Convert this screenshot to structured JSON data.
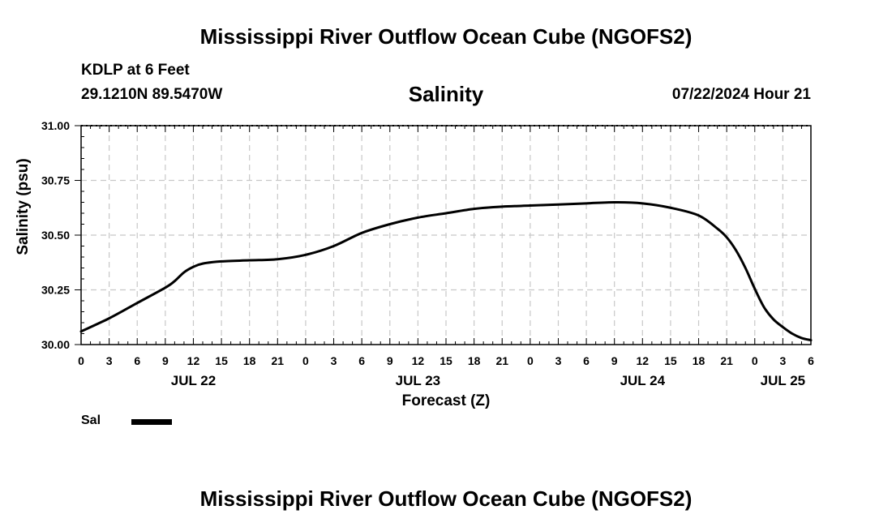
{
  "header": {
    "title": "Mississippi River Outflow Ocean Cube (NGOFS2)",
    "station": "KDLP at 6 Feet",
    "coordinates": "29.1210N  89.5470W",
    "datetime": "07/22/2024 Hour 21"
  },
  "footer": {
    "title": "Mississippi River Outflow Ocean Cube (NGOFS2)"
  },
  "legend": {
    "label": "Sal",
    "color": "#000000"
  },
  "chart_data": {
    "type": "line",
    "title": "Salinity",
    "xlabel": "Forecast (Z)",
    "ylabel": "Salinity (psu)",
    "x_unit": "hours since 2024-07-22 00Z",
    "xlim": [
      0,
      78
    ],
    "ylim": [
      30.0,
      31.0
    ],
    "yticks": [
      "30.00",
      "30.25",
      "30.50",
      "30.75",
      "31.00"
    ],
    "xtick_values": [
      0,
      3,
      6,
      9,
      12,
      15,
      18,
      21,
      24,
      27,
      30,
      33,
      36,
      39,
      42,
      45,
      48,
      51,
      54,
      57,
      60,
      63,
      66,
      69,
      72,
      75,
      78
    ],
    "xtick_labels": [
      "0",
      "3",
      "6",
      "9",
      "12",
      "15",
      "18",
      "21",
      "0",
      "3",
      "6",
      "9",
      "12",
      "15",
      "18",
      "21",
      "0",
      "3",
      "6",
      "9",
      "12",
      "15",
      "18",
      "21",
      "0",
      "3",
      "6"
    ],
    "date_labels": [
      {
        "hour": 12,
        "label": "JUL 22"
      },
      {
        "hour": 36,
        "label": "JUL 23"
      },
      {
        "hour": 60,
        "label": "JUL 24"
      },
      {
        "hour": 75,
        "label": "JUL 25"
      }
    ],
    "grid": true,
    "series": [
      {
        "name": "Sal",
        "x": [
          0,
          3,
          6,
          9,
          10,
          11,
          12,
          13,
          15,
          18,
          21,
          24,
          27,
          30,
          33,
          36,
          39,
          42,
          45,
          48,
          51,
          54,
          57,
          60,
          63,
          66,
          68,
          69,
          70,
          71,
          72,
          73,
          74,
          75,
          76,
          77,
          78
        ],
        "y": [
          30.06,
          30.12,
          30.19,
          30.26,
          30.29,
          30.33,
          30.355,
          30.37,
          30.38,
          30.385,
          30.39,
          30.41,
          30.45,
          30.51,
          30.55,
          30.58,
          30.6,
          30.62,
          30.63,
          30.635,
          30.64,
          30.645,
          30.65,
          30.645,
          30.625,
          30.59,
          30.53,
          30.49,
          30.43,
          30.35,
          30.255,
          30.17,
          30.115,
          30.08,
          30.05,
          30.03,
          30.02
        ]
      }
    ]
  }
}
